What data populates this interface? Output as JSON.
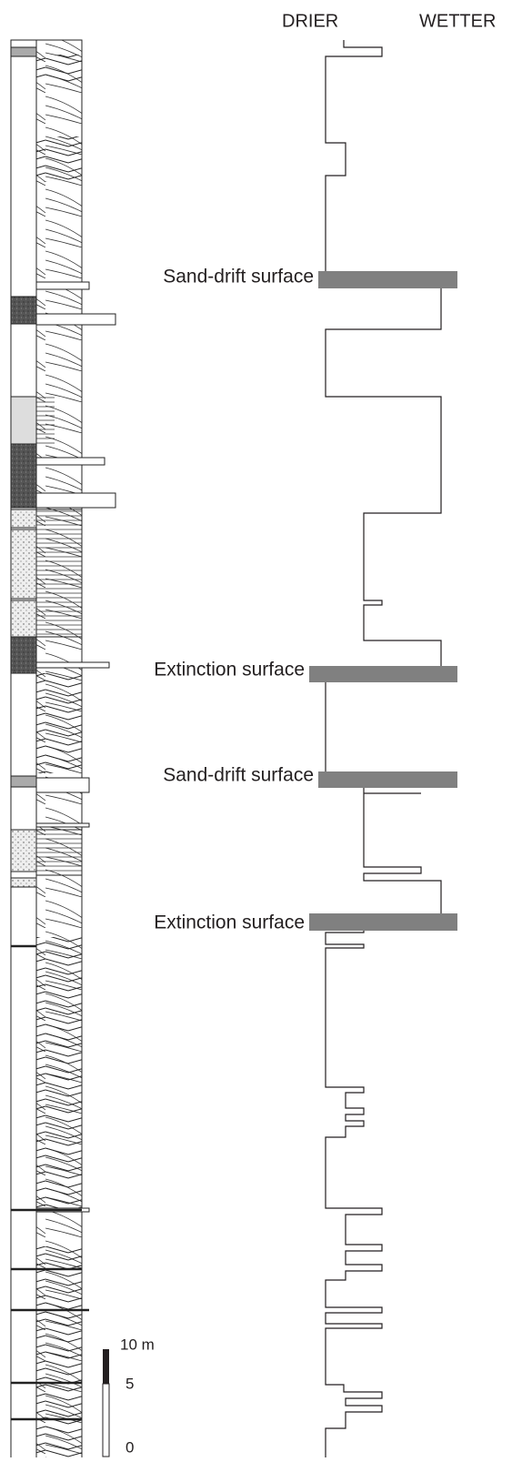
{
  "header": {
    "left": "DRIER",
    "right": "WETTER"
  },
  "surfaces": [
    {
      "label": "Sand-drift surface"
    },
    {
      "label": "Extinction surface"
    },
    {
      "label": "Sand-drift surface"
    },
    {
      "label": "Extinction surface"
    }
  ],
  "scale": {
    "top": "10 m",
    "middle": "5",
    "bottom": "0"
  }
}
